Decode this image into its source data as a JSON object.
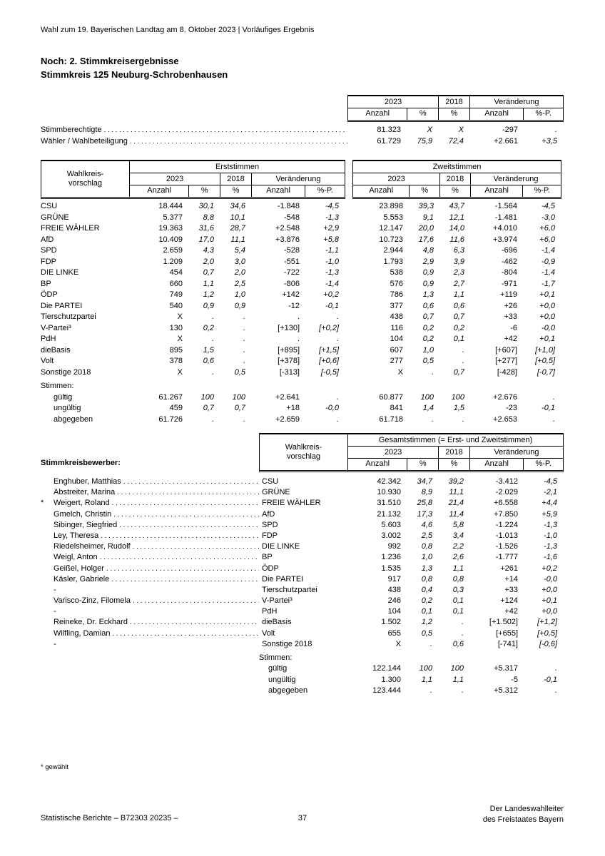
{
  "page": {
    "header_line": "Wahl zum 19. Bayerischen Landtag am 8. Oktober 2023 | Vorläufiges Ergebnis",
    "title1": "Noch: 2. Stimmkreisergebnisse",
    "title2": "Stimmkreis 125 Neuburg-Schrobenhausen",
    "footnote": "* gewählt",
    "footer_left": "Statistische Berichte – B72303 20235 –",
    "footer_page": "37",
    "footer_right1": "Der Landeswahlleiter",
    "footer_right2": "des Freistaates Bayern"
  },
  "headers": {
    "wahlkreis1": "Wahlkreis-",
    "wahlkreis2": "vorschlag",
    "erst": "Erststimmen",
    "zweit": "Zweitstimmen",
    "gesamt": "Gesamtstimmen (= Erst- und Zweitstimmen)",
    "y2023": "2023",
    "y2018": "2018",
    "change": "Veränderung",
    "anzahl": "Anzahl",
    "pct": "%",
    "pctp": "%-P."
  },
  "overview": {
    "rows": [
      {
        "label": "Stimmberechtigte",
        "values": [
          "81.323",
          "X",
          "X",
          "-297",
          "."
        ]
      },
      {
        "label": "Wähler / Wahlbeteiligung",
        "values": [
          "61.729",
          "75,9",
          "72,4",
          "+2.661",
          "+3,5"
        ]
      }
    ]
  },
  "votes_table": {
    "rows": [
      {
        "label": "CSU",
        "erst": [
          "18.444",
          "30,1",
          "34,6",
          "-1.848",
          "-4,5"
        ],
        "zweit": [
          "23.898",
          "39,3",
          "43,7",
          "-1.564",
          "-4,5"
        ]
      },
      {
        "label": "GRÜNE",
        "erst": [
          "5.377",
          "8,8",
          "10,1",
          "-548",
          "-1,3"
        ],
        "zweit": [
          "5.553",
          "9,1",
          "12,1",
          "-1.481",
          "-3,0"
        ]
      },
      {
        "label": "FREIE WÄHLER",
        "erst": [
          "19.363",
          "31,6",
          "28,7",
          "+2.548",
          "+2,9"
        ],
        "zweit": [
          "12.147",
          "20,0",
          "14,0",
          "+4.010",
          "+6,0"
        ]
      },
      {
        "label": "AfD",
        "erst": [
          "10.409",
          "17,0",
          "11,1",
          "+3.876",
          "+5,8"
        ],
        "zweit": [
          "10.723",
          "17,6",
          "11,6",
          "+3.974",
          "+6,0"
        ]
      },
      {
        "label": "SPD",
        "erst": [
          "2.659",
          "4,3",
          "5,4",
          "-528",
          "-1,1"
        ],
        "zweit": [
          "2.944",
          "4,8",
          "6,3",
          "-696",
          "-1,4"
        ]
      },
      {
        "label": "FDP",
        "erst": [
          "1.209",
          "2,0",
          "3,0",
          "-551",
          "-1,0"
        ],
        "zweit": [
          "1.793",
          "2,9",
          "3,9",
          "-462",
          "-0,9"
        ]
      },
      {
        "label": "DIE LINKE",
        "erst": [
          "454",
          "0,7",
          "2,0",
          "-722",
          "-1,3"
        ],
        "zweit": [
          "538",
          "0,9",
          "2,3",
          "-804",
          "-1,4"
        ]
      },
      {
        "label": "BP",
        "erst": [
          "660",
          "1,1",
          "2,5",
          "-806",
          "-1,4"
        ],
        "zweit": [
          "576",
          "0,9",
          "2,7",
          "-971",
          "-1,7"
        ]
      },
      {
        "label": "ÖDP",
        "erst": [
          "749",
          "1,2",
          "1,0",
          "+142",
          "+0,2"
        ],
        "zweit": [
          "786",
          "1,3",
          "1,1",
          "+119",
          "+0,1"
        ]
      },
      {
        "label": "Die PARTEI",
        "erst": [
          "540",
          "0,9",
          "0,9",
          "-12",
          "-0,1"
        ],
        "zweit": [
          "377",
          "0,6",
          "0,6",
          "+26",
          "+0,0"
        ]
      },
      {
        "label": "Tierschutzpartei",
        "erst": [
          "X",
          ".",
          ".",
          ".",
          "."
        ],
        "zweit": [
          "438",
          "0,7",
          "0,7",
          "+33",
          "+0,0"
        ]
      },
      {
        "label": "V-Partei³",
        "erst": [
          "130",
          "0,2",
          ".",
          "[+130]",
          "[+0,2]"
        ],
        "zweit": [
          "116",
          "0,2",
          "0,2",
          "-6",
          "-0,0"
        ]
      },
      {
        "label": "PdH",
        "erst": [
          "X",
          ".",
          ".",
          ".",
          "."
        ],
        "zweit": [
          "104",
          "0,2",
          "0,1",
          "+42",
          "+0,1"
        ]
      },
      {
        "label": "dieBasis",
        "erst": [
          "895",
          "1,5",
          ".",
          "[+895]",
          "[+1,5]"
        ],
        "zweit": [
          "607",
          "1,0",
          ".",
          "[+607]",
          "[+1,0]"
        ]
      },
      {
        "label": "Volt",
        "erst": [
          "378",
          "0,6",
          ".",
          "[+378]",
          "[+0,6]"
        ],
        "zweit": [
          "277",
          "0,5",
          ".",
          "[+277]",
          "[+0,5]"
        ]
      },
      {
        "label": "Sonstige 2018",
        "erst": [
          "X",
          ".",
          "0,5",
          "[-313]",
          "[-0,5]"
        ],
        "zweit": [
          "X",
          ".",
          "0,7",
          "[-428]",
          "[-0,7]"
        ]
      }
    ],
    "stimmen_label": "Stimmen:",
    "stimmen_rows": [
      {
        "label": "gültig",
        "erst": [
          "61.267",
          "100",
          "100",
          "+2.641",
          "."
        ],
        "zweit": [
          "60.877",
          "100",
          "100",
          "+2.676",
          "."
        ]
      },
      {
        "label": "ungültig",
        "erst": [
          "459",
          "0,7",
          "0,7",
          "+18",
          "-0,0"
        ],
        "zweit": [
          "841",
          "1,4",
          "1,5",
          "-23",
          "-0,1"
        ]
      },
      {
        "label": "abgegeben",
        "erst": [
          "61.726",
          ".",
          ".",
          "+2.659",
          "."
        ],
        "zweit": [
          "61.718",
          ".",
          ".",
          "+2.653",
          "."
        ]
      }
    ]
  },
  "candidates_table": {
    "section_label": "Stimmkreisbewerber:",
    "rows": [
      {
        "marker": "",
        "name": "Enghuber, Matthias",
        "party": "CSU",
        "values": [
          "42.342",
          "34,7",
          "39,2",
          "-3.412",
          "-4,5"
        ]
      },
      {
        "marker": "",
        "name": "Abstreiter, Marina",
        "party": "GRÜNE",
        "values": [
          "10.930",
          "8,9",
          "11,1",
          "-2.029",
          "-2,1"
        ]
      },
      {
        "marker": "*",
        "name": "Weigert, Roland",
        "party": "FREIE WÄHLER",
        "values": [
          "31.510",
          "25,8",
          "21,4",
          "+6.558",
          "+4,4"
        ]
      },
      {
        "marker": "",
        "name": "Gmelch, Christin",
        "party": "AfD",
        "values": [
          "21.132",
          "17,3",
          "11,4",
          "+7.850",
          "+5,9"
        ]
      },
      {
        "marker": "",
        "name": "Sibinger, Siegfried",
        "party": "SPD",
        "values": [
          "5.603",
          "4,6",
          "5,8",
          "-1.224",
          "-1,3"
        ]
      },
      {
        "marker": "",
        "name": "Ley, Theresa",
        "party": "FDP",
        "values": [
          "3.002",
          "2,5",
          "3,4",
          "-1.013",
          "-1,0"
        ]
      },
      {
        "marker": "",
        "name": "Riedelsheimer, Rudolf",
        "party": "DIE LINKE",
        "values": [
          "992",
          "0,8",
          "2,2",
          "-1.526",
          "-1,3"
        ]
      },
      {
        "marker": "",
        "name": "Weigl, Anton",
        "party": "BP",
        "values": [
          "1.236",
          "1,0",
          "2,6",
          "-1.777",
          "-1,6"
        ]
      },
      {
        "marker": "",
        "name": "Geißel, Holger",
        "party": "ÖDP",
        "values": [
          "1.535",
          "1,3",
          "1,1",
          "+261",
          "+0,2"
        ]
      },
      {
        "marker": "",
        "name": "Käsler, Gabriele",
        "party": "Die PARTEI",
        "values": [
          "917",
          "0,8",
          "0,8",
          "+14",
          "-0,0"
        ]
      },
      {
        "marker": "",
        "name": "-",
        "party": "Tierschutzpartei",
        "values": [
          "438",
          "0,4",
          "0,3",
          "+33",
          "+0,0"
        ]
      },
      {
        "marker": "",
        "name": "Varisco-Zinz, Filomela",
        "party": "V-Partei³",
        "values": [
          "246",
          "0,2",
          "0,1",
          "+124",
          "+0,1"
        ]
      },
      {
        "marker": "",
        "name": "-",
        "party": "PdH",
        "values": [
          "104",
          "0,1",
          "0,1",
          "+42",
          "+0,0"
        ]
      },
      {
        "marker": "",
        "name": "Reineke, Dr. Eckhard",
        "party": "dieBasis",
        "values": [
          "1.502",
          "1,2",
          ".",
          "[+1.502]",
          "[+1,2]"
        ]
      },
      {
        "marker": "",
        "name": "Wilfling, Damian",
        "party": "Volt",
        "values": [
          "655",
          "0,5",
          ".",
          "[+655]",
          "[+0,5]"
        ]
      },
      {
        "marker": "",
        "name": "-",
        "party": "Sonstige 2018",
        "values": [
          "X",
          ".",
          "0,6",
          "[-741]",
          "[-0,6]"
        ]
      }
    ],
    "stimmen_label": "Stimmen:",
    "stimmen_rows": [
      {
        "label": "gültig",
        "values": [
          "122.144",
          "100",
          "100",
          "+5.317",
          "."
        ]
      },
      {
        "label": "ungültig",
        "values": [
          "1.300",
          "1,1",
          "1,1",
          "-5",
          "-0,1"
        ]
      },
      {
        "label": "abgegeben",
        "values": [
          "123.444",
          ".",
          ".",
          "+5.312",
          "."
        ]
      }
    ]
  }
}
